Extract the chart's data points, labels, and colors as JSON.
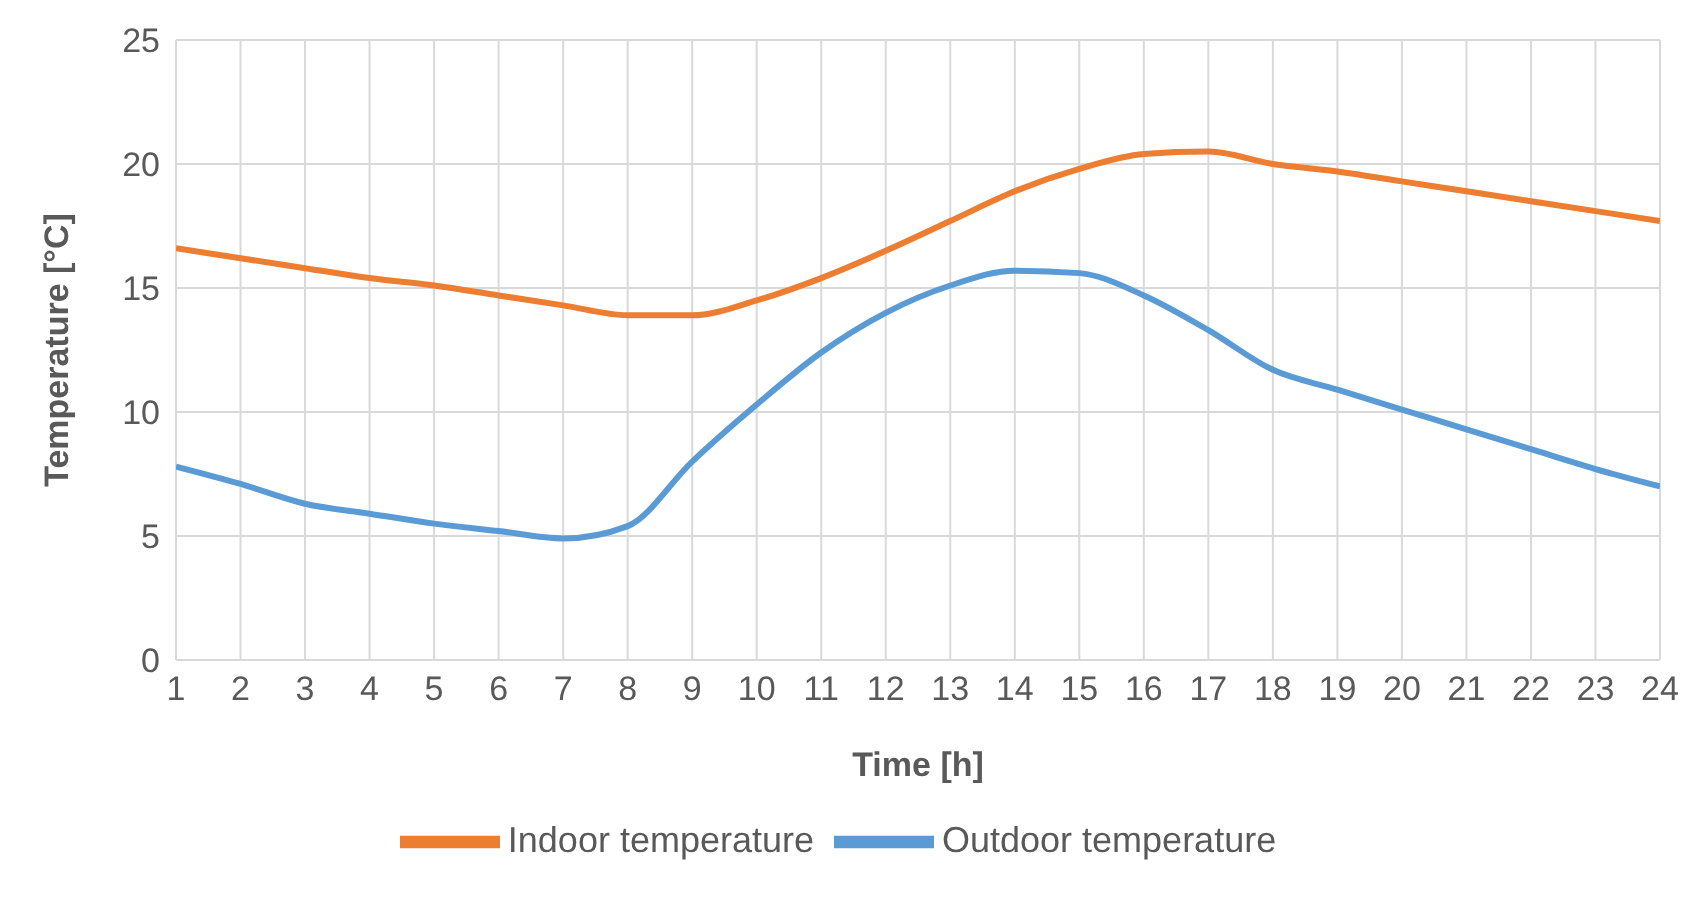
{
  "chart_data": {
    "type": "line",
    "xlabel": "Time [h]",
    "ylabel": "Temperature [°C]",
    "x": [
      1,
      2,
      3,
      4,
      5,
      6,
      7,
      8,
      9,
      10,
      11,
      12,
      13,
      14,
      15,
      16,
      17,
      18,
      19,
      20,
      21,
      22,
      23,
      24
    ],
    "xlim": [
      1,
      24
    ],
    "xticks": [
      1,
      2,
      3,
      4,
      5,
      6,
      7,
      8,
      9,
      10,
      11,
      12,
      13,
      14,
      15,
      16,
      17,
      18,
      19,
      20,
      21,
      22,
      23,
      24
    ],
    "ylim": [
      0,
      25
    ],
    "yticks": [
      0,
      5,
      10,
      15,
      20,
      25
    ],
    "grid": true,
    "legend": "bottom",
    "marker": "none",
    "line_style": "solid",
    "series": [
      {
        "name": "Outdoor temperature",
        "color": "#5b9bd5",
        "values": [
          7.8,
          7.1,
          6.3,
          5.9,
          5.5,
          5.2,
          4.9,
          5.4,
          8.0,
          10.3,
          12.4,
          14.0,
          15.1,
          15.7,
          15.6,
          14.7,
          13.3,
          11.7,
          10.9,
          10.1,
          9.3,
          8.5,
          7.7,
          7.0
        ]
      },
      {
        "name": "Indoor temperature",
        "color": "#ed7d31",
        "values": [
          16.6,
          16.2,
          15.8,
          15.4,
          15.1,
          14.7,
          14.3,
          13.9,
          13.9,
          14.5,
          15.4,
          16.5,
          17.7,
          18.9,
          19.8,
          20.4,
          20.5,
          20.0,
          19.7,
          19.3,
          18.9,
          18.5,
          18.1,
          17.7
        ]
      }
    ]
  }
}
